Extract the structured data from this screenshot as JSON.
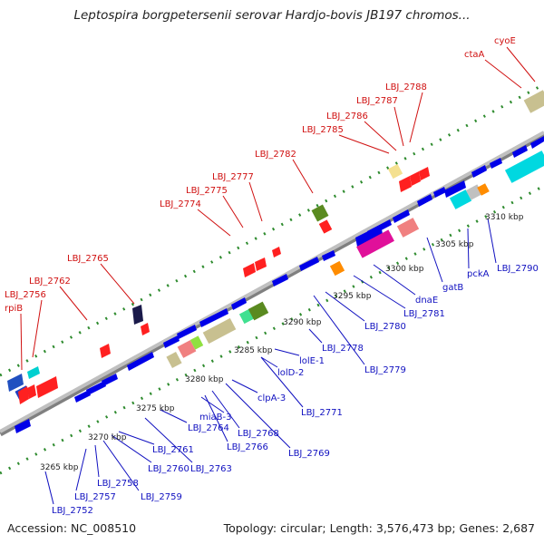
{
  "title": "Leptospira borgpetersenii serovar Hardjo-bovis JB197 chromos...",
  "footer": {
    "accession": "Accession: NC_008510",
    "summary": "Topology: circular; Length: 3,576,473 bp; Genes: 2,687"
  },
  "colors": {
    "backbone": "#a0a0a0",
    "tick": "#2e8b2e",
    "label_red": "#d01010",
    "label_blue": "#1010c0",
    "gene_red": "#ff0000",
    "gene_blue": "#0000e8"
  },
  "axis": {
    "unit": "kbp",
    "ticks": [
      "3265 kbp",
      "3270 kbp",
      "3275 kbp",
      "3280 kbp",
      "3285 kbp",
      "3290 kbp",
      "3295 kbp",
      "3300 kbp",
      "3305 kbp",
      "3310 kbp"
    ]
  },
  "labels_top": [
    "rpiB",
    "LBJ_2756",
    "LBJ_2762",
    "LBJ_2765",
    "LBJ_2774",
    "LBJ_2775",
    "LBJ_2777",
    "LBJ_2782",
    "LBJ_2785",
    "LBJ_2786",
    "LBJ_2787",
    "LBJ_2788",
    "ctaA",
    "cyoE"
  ],
  "labels_bottom": [
    "LBJ_2752",
    "LBJ_2757",
    "LBJ_2758",
    "LBJ_2759",
    "LBJ_2760",
    "LBJ_2761",
    "LBJ_2763",
    "LBJ_2764",
    "miaB-3",
    "LBJ_2766",
    "LBJ_2768",
    "LBJ_2769",
    "clpA-3",
    "LBJ_2771",
    "lolD-2",
    "lolE-1",
    "LBJ_2778",
    "LBJ_2779",
    "LBJ_2780",
    "LBJ_2781",
    "dnaE",
    "gatB",
    "pckA",
    "LBJ_2790"
  ]
}
